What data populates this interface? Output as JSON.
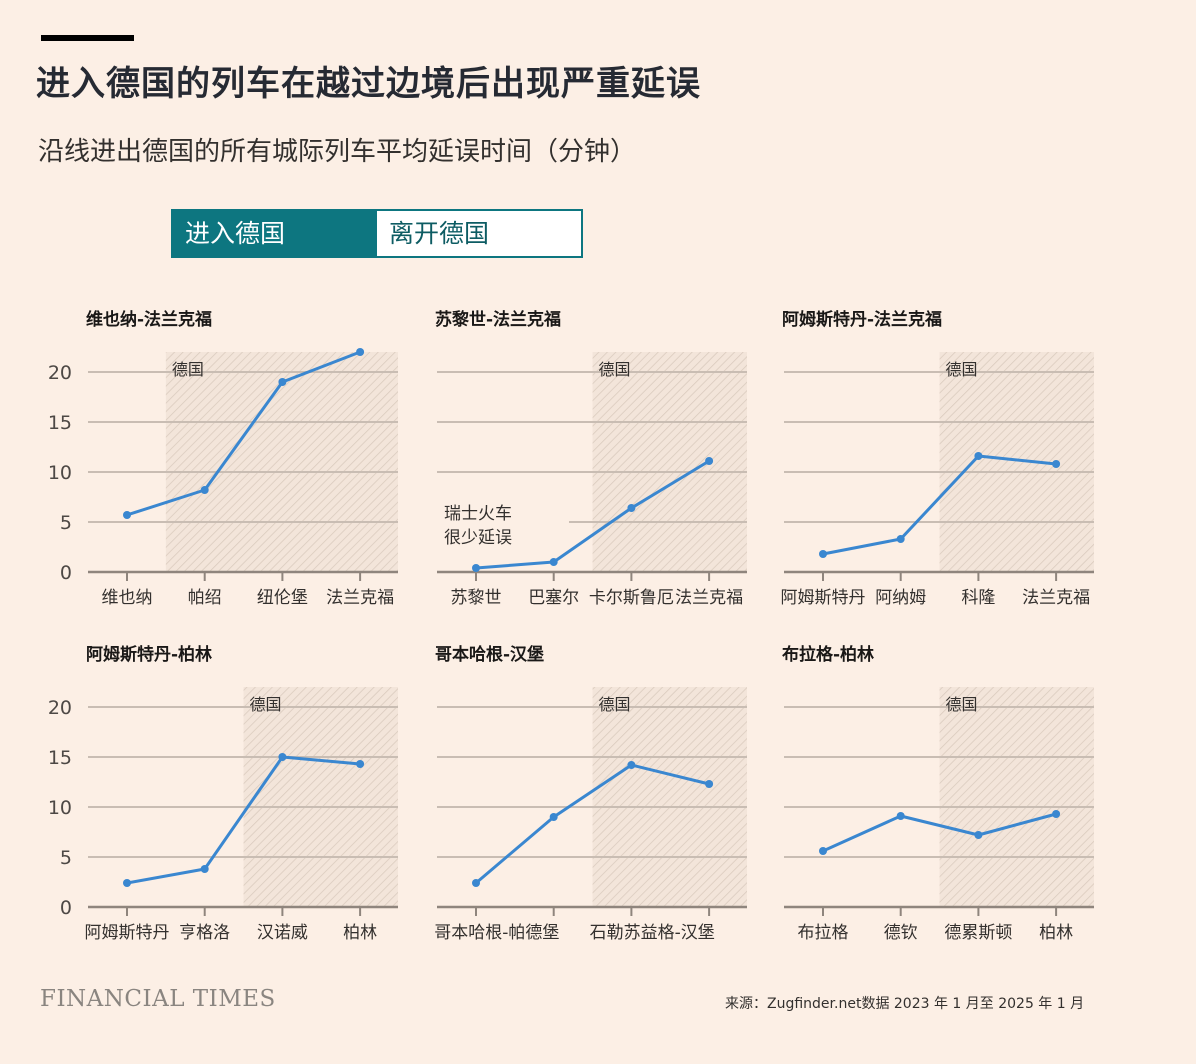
{
  "header": {
    "title": "进入德国的列车在越过边境后出现严重延误",
    "subtitle": "沿线进出德国的所有城际列车平均延误时间（分钟）"
  },
  "toggle": {
    "options": [
      "进入德国",
      "离开德国"
    ],
    "selected": "进入德国"
  },
  "footer": {
    "brand": "FINANCIAL TIMES",
    "source": "来源：Zugfinder.net数据 2023 年 1 月至 2025 年 1 月"
  },
  "colors": {
    "line": "#3a87d0",
    "accent": "#0d7680",
    "background": "#fcefe5",
    "grid": "#c9bdb3"
  },
  "chart_data": [
    {
      "type": "line",
      "title": "维也纳-法兰克福",
      "categories": [
        "维也纳",
        "帕绍",
        "纽伦堡",
        "法兰克福"
      ],
      "x_labels": [
        "维也纳",
        "帕绍",
        "纽伦堡",
        "法兰克福"
      ],
      "values": [
        5.7,
        8.2,
        19,
        22
      ],
      "germany_from_index": 0.5,
      "shade_label": "德国",
      "yticks": [
        0,
        5,
        10,
        15,
        20
      ],
      "ylim": [
        0,
        22
      ],
      "grid": true
    },
    {
      "type": "line",
      "title": "苏黎世-法兰克福",
      "categories": [
        "苏黎世",
        "巴塞尔",
        "卡尔斯鲁厄",
        "法兰克福"
      ],
      "x_labels": [
        "苏黎世",
        "巴塞尔",
        "卡尔斯鲁厄",
        "法兰克福"
      ],
      "values": [
        0.4,
        1.0,
        6.4,
        11.1
      ],
      "germany_from_index": 1.5,
      "shade_label": "德国",
      "annotation": [
        "瑞士火车",
        "很少延误"
      ],
      "ylim": [
        0,
        22
      ],
      "grid": true
    },
    {
      "type": "line",
      "title": "阿姆斯特丹-法兰克福",
      "categories": [
        "阿姆斯特丹",
        "阿纳姆",
        "科隆",
        "法兰克福"
      ],
      "x_labels": [
        "阿姆斯特丹",
        "阿纳姆",
        "科隆",
        "法兰克福"
      ],
      "values": [
        1.8,
        3.3,
        11.6,
        10.8
      ],
      "germany_from_index": 1.5,
      "shade_label": "德国",
      "ylim": [
        0,
        22
      ],
      "grid": true
    },
    {
      "type": "line",
      "title": "阿姆斯特丹-柏林",
      "categories": [
        "阿姆斯特丹",
        "亨格洛",
        "汉诺威",
        "柏林"
      ],
      "x_labels": [
        "阿姆斯特丹",
        "亨格洛",
        "汉诺威",
        "柏林"
      ],
      "values": [
        2.4,
        3.8,
        15.0,
        14.3
      ],
      "germany_from_index": 1.5,
      "shade_label": "德国",
      "yticks": [
        0,
        5,
        10,
        15,
        20
      ],
      "ylim": [
        0,
        22
      ],
      "grid": true
    },
    {
      "type": "line",
      "title": "哥本哈根-汉堡",
      "categories": [
        "哥本哈根",
        "帕德堡",
        "石勒苏益格",
        "汉堡"
      ],
      "x_labels": [
        "哥本哈根-帕德堡",
        "石勒苏益格-汉堡"
      ],
      "values": [
        2.4,
        9.0,
        14.2,
        12.3
      ],
      "germany_from_index": 1.5,
      "shade_label": "德国",
      "ylim": [
        0,
        22
      ],
      "grid": true
    },
    {
      "type": "line",
      "title": "布拉格-柏林",
      "categories": [
        "布拉格",
        "德钦",
        "德累斯顿",
        "柏林"
      ],
      "x_labels": [
        "布拉格",
        "德钦",
        "德累斯顿",
        "柏林"
      ],
      "values": [
        5.6,
        9.1,
        7.2,
        9.3
      ],
      "germany_from_index": 1.5,
      "shade_label": "德国",
      "ylim": [
        0,
        22
      ],
      "grid": true
    }
  ]
}
